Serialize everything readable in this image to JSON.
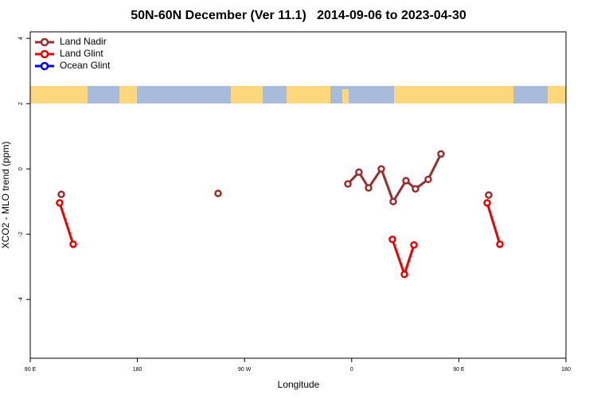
{
  "chart_data": {
    "type": "line",
    "title": "50N-60N December (Ver 11.1)   2014-09-06 to 2023-04-30",
    "x_label": "Longitude",
    "y_label": "XCO2 - MLO trend (ppm)",
    "xlim": [
      90,
      540
    ],
    "xticks": [
      {
        "value": 90,
        "label": "90 E"
      },
      180,
      {
        "value": 270,
        "label": "90 W"
      },
      {
        "value": 360,
        "label": "0"
      },
      {
        "value": 450,
        "label": "90 E"
      },
      {
        "value": 540,
        "label": "180"
      }
    ],
    "ylim": [
      -5.8,
      4.2
    ],
    "yticks": [
      -4,
      -2,
      0,
      2,
      4
    ],
    "legend": "top-left",
    "series": [
      {
        "name": "Land Nadir",
        "color": "#9b2d2d",
        "x": [
          116.1,
          null,
          247.8,
          null,
          356.8,
          366.1,
          374.2,
          384.9,
          394.9,
          405.6,
          413.6,
          424.3,
          435.0,
          null,
          475.1
        ],
        "values": [
          -0.78,
          null,
          -0.75,
          null,
          -0.46,
          -0.1,
          -0.58,
          0.0,
          -1.0,
          -0.36,
          -0.61,
          -0.32,
          0.46,
          null,
          -0.8
        ]
      },
      {
        "name": "Land Glint",
        "color": "#ee0000",
        "x": [
          114.7,
          126.1,
          null,
          394.2,
          404.3,
          412.3,
          null,
          473.8,
          484.5
        ],
        "values": [
          -1.04,
          -2.31,
          null,
          -2.16,
          -3.23,
          -2.33,
          null,
          -1.04,
          -2.31
        ]
      },
      {
        "name": "Ocean Glint",
        "color": "#0000ee",
        "x": [],
        "values": []
      }
    ]
  }
}
